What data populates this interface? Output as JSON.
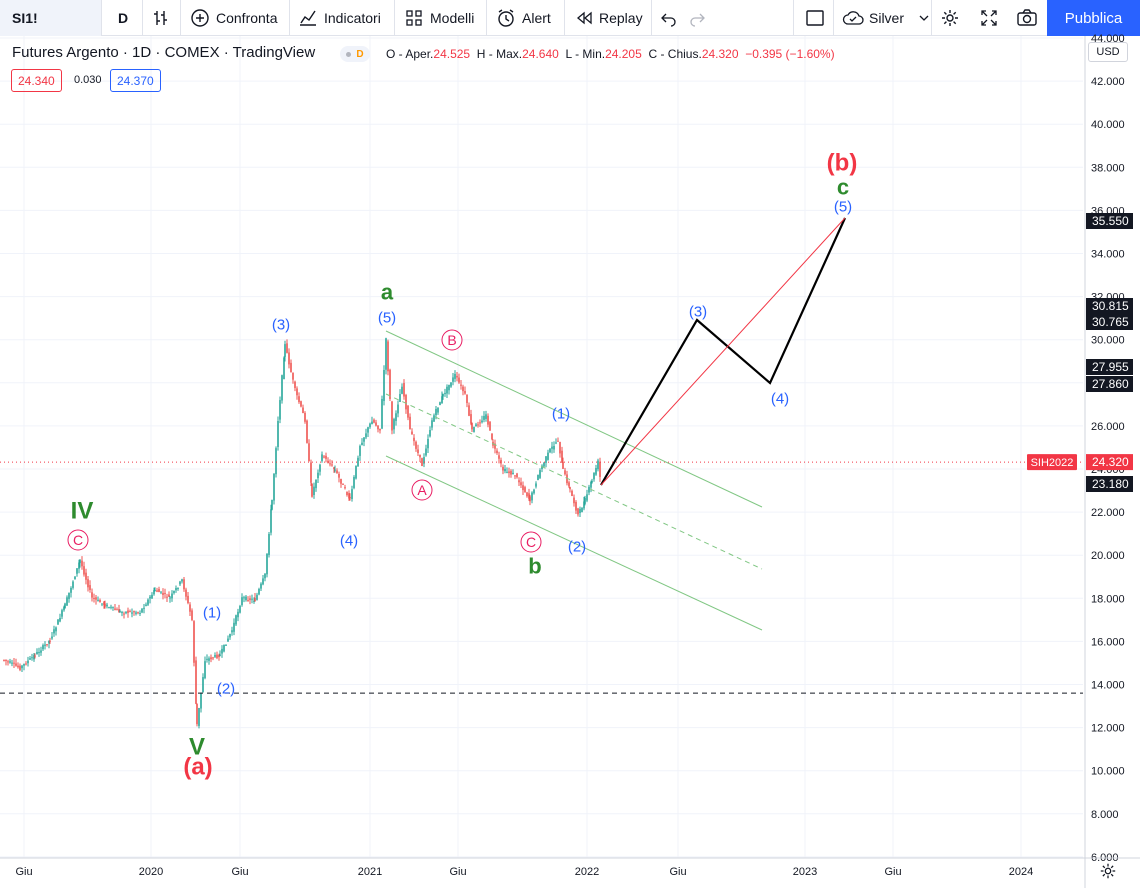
{
  "toolbar": {
    "symbol": "SI1!",
    "interval": "D",
    "compare": "Confronta",
    "indicators": "Indicatori",
    "templates": "Modelli",
    "alert": "Alert",
    "replay": "Replay",
    "layout_name": "Silver",
    "publish": "Pubblica",
    "icons": [
      "bars-style-icon",
      "compare-plus-icon",
      "indicators-icon",
      "templates-icon",
      "alert-clock-icon",
      "replay-icon",
      "undo-icon",
      "redo-icon",
      "layout-square-icon",
      "cloud-icon",
      "chevron-down-icon",
      "settings-gear-icon",
      "fullscreen-icon",
      "camera-icon"
    ]
  },
  "legend": {
    "title": "Futures Argento · 1D · COMEX · TradingView",
    "marker": "D",
    "o_label": "O",
    "open_label": "Aper.",
    "open": "24.525",
    "h_label": "H",
    "high_label": "Max.",
    "high": "24.640",
    "l_label": "L",
    "low_label": "Min.",
    "low": "24.205",
    "c_label": "C",
    "close_label": "Chius.",
    "close": "24.320",
    "change": "−0.395 (−1.60%)",
    "bid": "24.340",
    "spread": "0.030",
    "ask": "24.370"
  },
  "currency": "USD",
  "chart_data": {
    "type": "candlestick",
    "symbol_tag": "SIH2022",
    "last_price": 24.32,
    "ylim": [
      6,
      44
    ],
    "y_ticks": [
      "6.000",
      "8.000",
      "10.000",
      "12.000",
      "14.000",
      "16.000",
      "18.000",
      "20.000",
      "22.000",
      "24.000",
      "26.000",
      "28.000",
      "30.000",
      "32.000",
      "34.000",
      "36.000",
      "38.000",
      "40.000",
      "42.000",
      "44.000"
    ],
    "x_ticks": [
      "Giu",
      "2020",
      "Giu",
      "2021",
      "Giu",
      "2022",
      "Giu",
      "2023",
      "Giu",
      "2024"
    ],
    "price_labels": [
      {
        "value": 35.55,
        "text": "35.550"
      },
      {
        "value": 30.815,
        "text": "30.815"
      },
      {
        "value": 30.765,
        "text": "30.765"
      },
      {
        "value": 27.955,
        "text": "27.955"
      },
      {
        "value": 27.86,
        "text": "27.860"
      },
      {
        "value": 23.18,
        "text": "23.180"
      }
    ],
    "horizontal_line": 13.6,
    "wave_labels": [
      {
        "text": "IV",
        "color": "#2e8b2e"
      },
      {
        "text": "C",
        "color": "#e91e63",
        "circled": true
      },
      {
        "text": "V",
        "color": "#2e8b2e"
      },
      {
        "text": "(a)",
        "color": "#f23645"
      },
      {
        "text": "(1)",
        "color": "#2962ff"
      },
      {
        "text": "(2)",
        "color": "#2962ff"
      },
      {
        "text": "(3)",
        "color": "#2962ff"
      },
      {
        "text": "(4)",
        "color": "#2962ff"
      },
      {
        "text": "a",
        "color": "#2e8b2e"
      },
      {
        "text": "(5)",
        "color": "#2962ff"
      },
      {
        "text": "B",
        "color": "#e91e63",
        "circled": true
      },
      {
        "text": "A",
        "color": "#e91e63",
        "circled": true
      },
      {
        "text": "C",
        "color": "#e91e63",
        "circled": true
      },
      {
        "text": "b",
        "color": "#2e8b2e"
      },
      {
        "text": "(1)",
        "color": "#2962ff"
      },
      {
        "text": "(2)",
        "color": "#2962ff"
      },
      {
        "text": "(3)",
        "color": "#2962ff"
      },
      {
        "text": "(4)",
        "color": "#2962ff"
      },
      {
        "text": "(5)",
        "color": "#2962ff"
      },
      {
        "text": "c",
        "color": "#2e8b2e"
      },
      {
        "text": "(b)",
        "color": "#f23645"
      }
    ],
    "colors": {
      "up": "#26a69a",
      "down": "#ef5350",
      "channel": "#81c784",
      "projection": "#000000",
      "target_line": "#f23645",
      "grid": "#f0f3fa"
    }
  }
}
